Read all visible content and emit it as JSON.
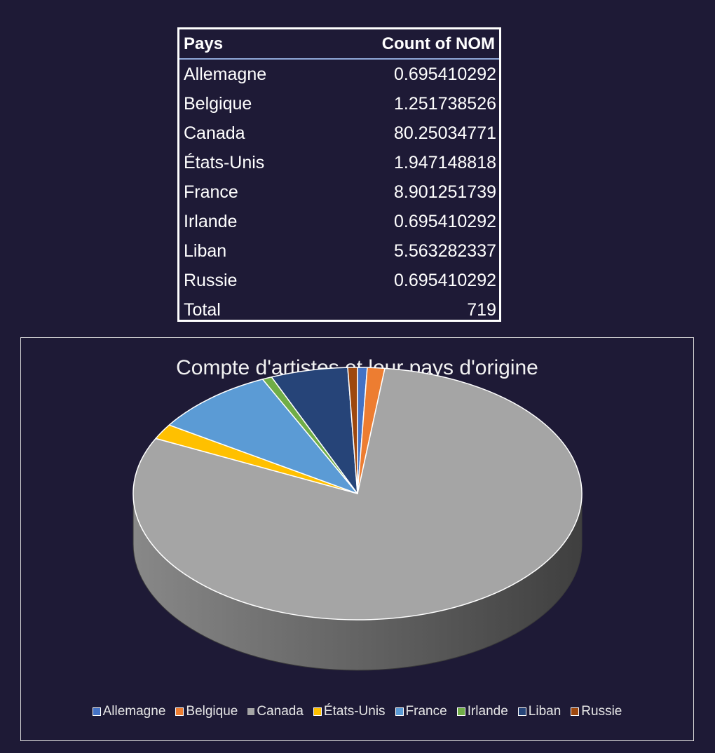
{
  "pivot_table": {
    "headers": [
      "Pays",
      "Count of NOM"
    ],
    "rows": [
      {
        "pays": "Allemagne",
        "value": "0.695410292"
      },
      {
        "pays": "Belgique",
        "value": "1.251738526"
      },
      {
        "pays": "Canada",
        "value": "80.25034771"
      },
      {
        "pays": "États-Unis",
        "value": "1.947148818"
      },
      {
        "pays": "France",
        "value": "8.901251739"
      },
      {
        "pays": "Irlande",
        "value": "0.695410292"
      },
      {
        "pays": "Liban",
        "value": "5.563282337"
      },
      {
        "pays": "Russie",
        "value": "0.695410292"
      }
    ],
    "total_label": "Total",
    "total_value": "719"
  },
  "chart_data": {
    "type": "pie",
    "title": "Compte d'artistes et leur pays d'origine",
    "categories": [
      "Allemagne",
      "Belgique",
      "Canada",
      "États-Unis",
      "France",
      "Irlande",
      "Liban",
      "Russie"
    ],
    "values": [
      0.695410292,
      1.251738526,
      80.25034771,
      1.947148818,
      8.901251739,
      0.695410292,
      5.563282337,
      0.695410292
    ],
    "colors": [
      "#4472c4",
      "#ed7d31",
      "#a5a5a5",
      "#ffc000",
      "#5b9bd5",
      "#70ad47",
      "#264478",
      "#9e480e"
    ],
    "legend_position": "bottom",
    "style": "3d-pie"
  }
}
